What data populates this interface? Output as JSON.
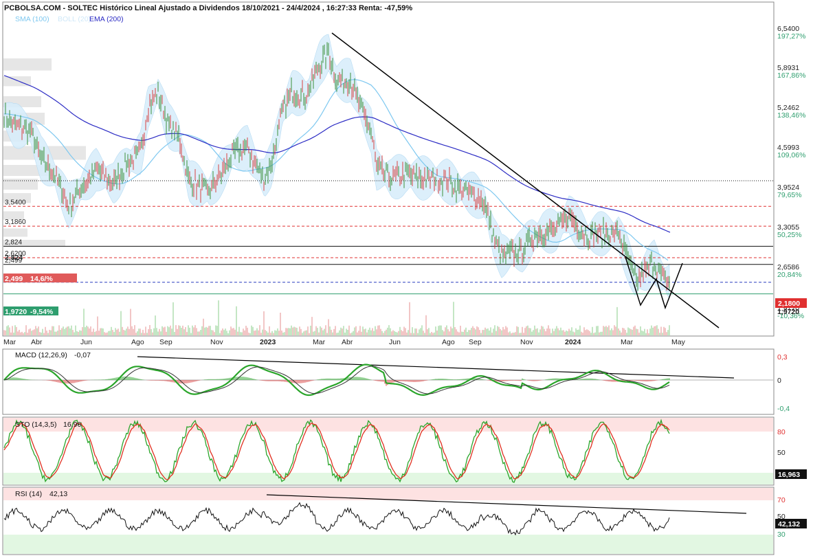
{
  "header": {
    "title": "PCBOLSA.COM - SOLTEC Histórico Lineal Ajustado a Dividendos 18/10/2021 - 24/4/2024 , 16:27:33 Renta: -47,59%"
  },
  "legend": [
    {
      "label": "SMA (100)",
      "color": "#7ec8f0"
    },
    {
      "label": "BOLL (20)",
      "color": "#cfe8f8"
    },
    {
      "label": "EMA (200)",
      "color": "#2b2bc4"
    }
  ],
  "colors": {
    "price": "#3a8f3a",
    "price_down": "#d84040",
    "sma": "#7ec8f0",
    "boll_fill": "#d6ecfa",
    "ema": "#2b2bc4",
    "hist_pos": "#2aa52a",
    "hist_neg": "#d84040",
    "macd_line": "#2aa52a",
    "signal_line": "#333333",
    "sto_k": "#2aa52a",
    "sto_d": "#e03020",
    "rsi_line": "#111111",
    "zone_high": "#fde2e2",
    "zone_low": "#e2f7e2",
    "level_red": "#e03030",
    "level_blue": "#2a3fbf",
    "level_green": "#2e9e6e"
  },
  "x_axis": {
    "labels": [
      "Mar",
      "Abr",
      "Jun",
      "Ago",
      "Sep",
      "Nov",
      "2023",
      "Mar",
      "Abr",
      "Jun",
      "Ago",
      "Sep",
      "Nov",
      "2024",
      "Mar",
      "May"
    ],
    "bold": [
      "2023",
      "2024"
    ]
  },
  "price_axis": {
    "ticks": [
      {
        "price": "6,5400",
        "pct": "197,27%"
      },
      {
        "price": "5,8931",
        "pct": "167,86%"
      },
      {
        "price": "5,2462",
        "pct": "138,46%"
      },
      {
        "price": "4,5993",
        "pct": "109,06%"
      },
      {
        "price": "3,9524",
        "pct": "79,65%"
      },
      {
        "price": "3,3055",
        "pct": "50,25%"
      },
      {
        "price": "2,6586",
        "pct": "20,84%"
      },
      {
        "price": "1,9720",
        "pct": "-10,36%"
      }
    ],
    "current_price_badge": "2,1800"
  },
  "levels": {
    "lines": [
      {
        "label": "3,5400",
        "value": 3.54,
        "style": "dashed",
        "color": "red"
      },
      {
        "label": "3,1860",
        "value": 3.186,
        "style": "dashed",
        "color": "red"
      },
      {
        "label": "2,824",
        "value": 2.824,
        "style": "solid",
        "color": "black"
      },
      {
        "label": "2,6200",
        "value": 2.62,
        "style": "dashed",
        "color": "red"
      },
      {
        "label": "2,499",
        "value": 2.499,
        "style": "solid",
        "color": "black"
      },
      {
        "label": "",
        "value": 2.18,
        "style": "dashed",
        "color": "blue"
      },
      {
        "label": "",
        "value": 1.972,
        "style": "solid",
        "color": "green"
      },
      {
        "label": "",
        "value": 4.0,
        "style": "dotted",
        "color": "black"
      }
    ],
    "badge_red": {
      "price": "2,499",
      "pct": "14,6/%"
    },
    "badge_green": {
      "price": "1,9720",
      "pct": "-9,54%"
    },
    "overlap_label": "2,824"
  },
  "macd": {
    "label": "MACD (12,26,9)",
    "value": "-0,07",
    "ticks": [
      "0,3",
      "0",
      "-0,4"
    ]
  },
  "sto": {
    "label": "STO (14,3,5)",
    "value": "16,96",
    "ticks": [
      "80",
      "50"
    ],
    "badge": "16,963"
  },
  "rsi": {
    "label": "RSI (14)",
    "value": "42,13",
    "ticks": [
      "70",
      "50",
      "30"
    ],
    "badge": "42,132"
  },
  "chart_data": {
    "type": "line",
    "title": "PCBOLSA.COM - SOLTEC Histórico Lineal Ajustado a Dividendos 18/10/2021 - 24/4/2024 , 16:27:33 Renta: -47,59%",
    "x": [
      "Mar",
      "Abr",
      "Jun",
      "Ago",
      "Sep",
      "Nov",
      "2023",
      "Mar",
      "Abr",
      "Jun",
      "Ago",
      "Sep",
      "Nov",
      "2024",
      "Mar",
      "May"
    ],
    "series": [
      {
        "name": "",
        "values": [
          5.3,
          4.5,
          3.7,
          4.2,
          5.8,
          4.3,
          4.1,
          4.8,
          6.3,
          5.2,
          4.0,
          3.8,
          2.6,
          3.1,
          2.2,
          2.2
        ]
      },
      {
        "name": "SMA (100)",
        "values": [
          5.2,
          4.6,
          4.1,
          4.0,
          4.4,
          4.7,
          4.5,
          4.6,
          5.2,
          5.3,
          4.6,
          3.9,
          3.2,
          3.1,
          2.9,
          2.8
        ]
      },
      {
        "name": "EMA (200)",
        "values": [
          6.0,
          5.6,
          5.2,
          5.0,
          4.9,
          4.7,
          4.6,
          4.7,
          5.0,
          5.0,
          4.7,
          4.4,
          3.8,
          3.6,
          3.4,
          3.2
        ]
      }
    ],
    "ylim": [
      1.7,
      6.7
    ],
    "grid": false
  }
}
